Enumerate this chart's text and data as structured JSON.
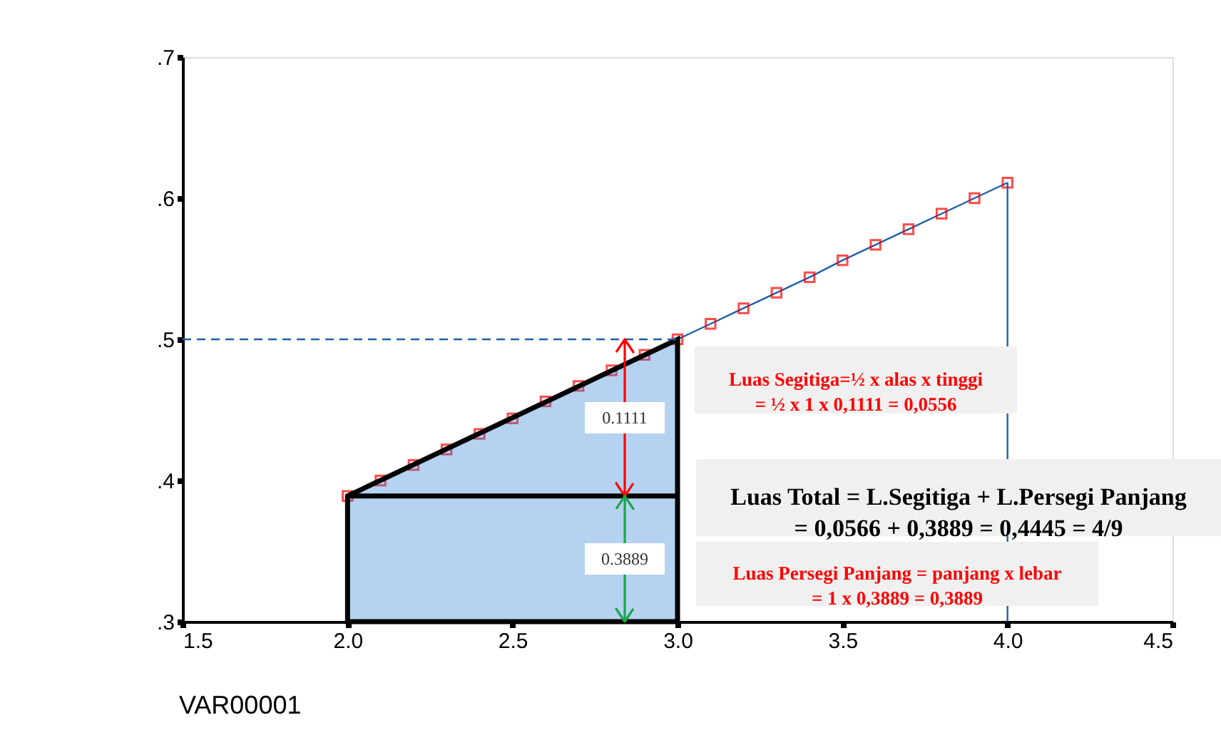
{
  "chart_data": {
    "type": "line",
    "xlabel": "VAR00001",
    "series": [
      {
        "color": "#1f5fa8",
        "x": [
          2.0,
          2.1,
          2.2,
          2.3,
          2.4,
          2.5,
          2.6,
          2.7,
          2.8,
          2.9,
          3.0,
          3.1,
          3.2,
          3.3,
          3.4,
          3.5,
          3.6,
          3.7,
          3.8,
          3.9,
          4.0
        ],
        "values": [
          0.389,
          0.4,
          0.411,
          0.422,
          0.433,
          0.444,
          0.456,
          0.467,
          0.478,
          0.489,
          0.5,
          0.511,
          0.522,
          0.533,
          0.544,
          0.556,
          0.567,
          0.578,
          0.589,
          0.6,
          0.611
        ]
      },
      {
        "type": "area",
        "color": "#2a7fd4",
        "marker": "none",
        "x": [
          2.0,
          3.0
        ],
        "values": [
          0.389,
          0.5
        ]
      },
      {
        "type": "line",
        "color": "#000000",
        "marker": "none",
        "x": [
          2.0,
          3.0
        ],
        "values": [
          0.389,
          0.389
        ]
      }
    ],
    "ref_lines": [
      {
        "axis": "y",
        "value": 0.5,
        "color": "#1f5fa8",
        "line_style": "dashed"
      },
      {
        "axis": "x",
        "value": 4.0,
        "color": "#1f5fa8",
        "line_style": "solid"
      }
    ],
    "annotations": [
      "0.1111",
      "0.3889",
      "Luas Segitiga=½ x alas x tinggi\n= ½ x 1 x 0,1111 = 0,0556",
      "Luas Total = L.Segitiga + L.Persegi Panjang\n= 0,0566 + 0,3889 = 0,4445 = 4/9",
      "Luas Persegi Panjang = panjang x lebar\n= 1 x 0,3889 = 0,3889"
    ],
    "xlim": [
      1.5,
      4.5
    ],
    "xticks": [
      1.5,
      {
        "value": 2.0,
        "label": "2.0"
      },
      2.5,
      {
        "value": 3.0,
        "label": "3.0"
      },
      3.5,
      {
        "value": 4.0,
        "label": "4.0"
      },
      4.5
    ],
    "ylim": [
      0.3,
      0.7
    ],
    "yticks": [
      {
        "value": 0.3,
        "label": ".3"
      },
      {
        "value": 0.4,
        "label": ".4"
      },
      {
        "value": 0.5,
        "label": ".5"
      },
      {
        "value": 0.6,
        "label": ".6"
      },
      {
        "value": 0.7,
        "label": ".7"
      }
    ],
    "marker": "square",
    "line_style": "solid",
    "grid": false
  }
}
